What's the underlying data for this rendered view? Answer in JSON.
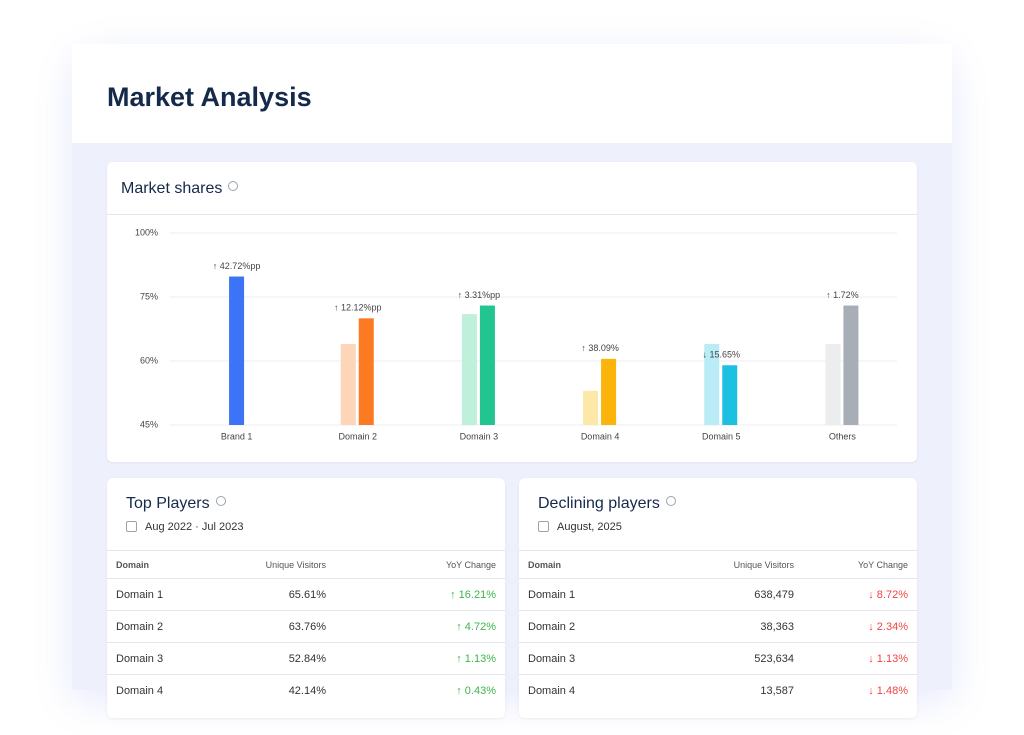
{
  "title": "Market Analysis",
  "chart_data": {
    "type": "bar",
    "title": "Market shares",
    "categories": [
      "Brand 1",
      "Domain 2",
      "Domain 3",
      "Domain 4",
      "Domain 5",
      "Others"
    ],
    "series": [
      {
        "colors": [
          "#4a7cf7",
          "#fdd5b8",
          "#bff0dc",
          "#fde8a8",
          "#b9ecf7",
          "#ebedef"
        ],
        "values": [
          null,
          64,
          71,
          53,
          64,
          64
        ]
      },
      {
        "colors": [
          "#3d74f6",
          "#fb7a22",
          "#22c48f",
          "#fbb40c",
          "#1cc0e0",
          "#a7aeb5"
        ],
        "values": [
          83,
          70,
          73,
          60.5,
          59,
          73
        ]
      }
    ],
    "annotations": [
      {
        "text": "↑ 42.72%pp",
        "color": "#3bb54a"
      },
      {
        "text": "↑ 12.12%pp",
        "color": "#3bb54a"
      },
      {
        "text": "↑ 3.31%pp",
        "color": "#3bb54a"
      },
      {
        "text": "↑ 38.09%",
        "color": "#3bb54a"
      },
      {
        "text": "↓ 15.65%",
        "color": "#ef4444"
      },
      {
        "text": "↑ 1.72%",
        "color": "#3bb54a"
      }
    ],
    "ylim": [
      45,
      100
    ],
    "yticks": [
      {
        "value": 45,
        "label": "45%"
      },
      {
        "value": 60,
        "label": "60%"
      },
      {
        "value": 75,
        "label": "75%"
      },
      {
        "value": 100,
        "label": "100%"
      }
    ],
    "grid": true
  },
  "tables": [
    {
      "title": "Top Players",
      "subtitle": "Aug 2022 · Jul 2023",
      "change_color": "#3bb54a",
      "columns": [
        "Domain",
        "Unique Visitors",
        "YoY Change"
      ],
      "rows": [
        [
          "Domain 1",
          "65.61%",
          "↑ 16.21%"
        ],
        [
          "Domain 2",
          "63.76%",
          "↑ 4.72%"
        ],
        [
          "Domain 3",
          "52.84%",
          "↑ 1.13%"
        ],
        [
          "Domain 4",
          "42.14%",
          "↑ 0.43%"
        ]
      ]
    },
    {
      "title": "Declining players",
      "subtitle": "August, 2025",
      "change_color": "#ef4444",
      "columns": [
        "Domain",
        "Unique Visitors",
        "YoY Change"
      ],
      "rows": [
        [
          "Domain 1",
          "638,479",
          "↓ 8.72%"
        ],
        [
          "Domain 2",
          "38,363",
          "↓ 2.34%"
        ],
        [
          "Domain 3",
          "523,634",
          "↓ 1.13%"
        ],
        [
          "Domain 4",
          "13,587",
          "↓ 1.48%"
        ]
      ]
    }
  ]
}
